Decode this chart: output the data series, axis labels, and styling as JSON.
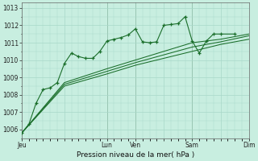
{
  "bg_color": "#c8eee0",
  "grid_color": "#a8d8c8",
  "line_color": "#1a6e2a",
  "marker_color": "#1a6e2a",
  "xlabel": "Pression niveau de la mer( hPa )",
  "ylim": [
    1005.5,
    1013.3
  ],
  "yticks": [
    1006,
    1007,
    1008,
    1009,
    1010,
    1011,
    1012,
    1013
  ],
  "xtick_labels": [
    "Jeu",
    "",
    "Lun",
    "Ven",
    "",
    "Sam",
    "",
    "Dim"
  ],
  "xtick_positions": [
    0,
    36,
    72,
    96,
    120,
    144,
    168,
    192
  ],
  "total_hours": 192,
  "series1": [
    [
      0,
      1005.8
    ],
    [
      6,
      1006.3
    ],
    [
      12,
      1007.5
    ],
    [
      18,
      1008.3
    ],
    [
      24,
      1008.4
    ],
    [
      30,
      1008.7
    ],
    [
      36,
      1009.8
    ],
    [
      42,
      1010.4
    ],
    [
      48,
      1010.2
    ],
    [
      54,
      1010.1
    ],
    [
      60,
      1010.1
    ],
    [
      66,
      1010.5
    ],
    [
      72,
      1011.1
    ],
    [
      78,
      1011.2
    ],
    [
      84,
      1011.3
    ],
    [
      90,
      1011.45
    ],
    [
      96,
      1011.8
    ],
    [
      102,
      1011.05
    ],
    [
      108,
      1011.0
    ],
    [
      114,
      1011.05
    ],
    [
      120,
      1012.0
    ],
    [
      126,
      1012.05
    ],
    [
      132,
      1012.1
    ],
    [
      138,
      1012.5
    ],
    [
      144,
      1011.1
    ],
    [
      150,
      1010.4
    ],
    [
      156,
      1011.1
    ],
    [
      162,
      1011.5
    ],
    [
      168,
      1011.5
    ],
    [
      180,
      1011.5
    ]
  ],
  "series2": [
    [
      0,
      1005.8
    ],
    [
      36,
      1008.5
    ],
    [
      72,
      1009.2
    ],
    [
      96,
      1009.7
    ],
    [
      120,
      1010.1
    ],
    [
      144,
      1010.5
    ],
    [
      168,
      1010.9
    ],
    [
      192,
      1011.2
    ]
  ],
  "series3": [
    [
      0,
      1005.8
    ],
    [
      36,
      1008.6
    ],
    [
      72,
      1009.35
    ],
    [
      96,
      1009.85
    ],
    [
      120,
      1010.3
    ],
    [
      144,
      1010.75
    ],
    [
      168,
      1011.05
    ],
    [
      192,
      1011.4
    ]
  ],
  "series4": [
    [
      0,
      1005.8
    ],
    [
      36,
      1008.7
    ],
    [
      72,
      1009.5
    ],
    [
      96,
      1010.0
    ],
    [
      120,
      1010.5
    ],
    [
      144,
      1011.0
    ],
    [
      168,
      1011.2
    ],
    [
      192,
      1011.5
    ]
  ],
  "vline_color": "#446644",
  "vline_positions": [
    72,
    96,
    144,
    192
  ]
}
